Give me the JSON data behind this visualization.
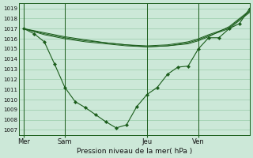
{
  "background_color": "#cce8d8",
  "plot_bg_color": "#cce8d8",
  "grid_color": "#99ccaa",
  "line_color": "#1a5c1a",
  "title": "Pression niveau de la mer( hPa )",
  "ylim": [
    1006.5,
    1019.5
  ],
  "yticks": [
    1007,
    1008,
    1009,
    1010,
    1011,
    1012,
    1013,
    1014,
    1015,
    1016,
    1017,
    1018,
    1019
  ],
  "xtick_labels": [
    "Mer",
    "Sam",
    "Jeu",
    "Ven"
  ],
  "xtick_positions": [
    0,
    16,
    48,
    68
  ],
  "xlim": [
    -2,
    88
  ],
  "series_flat": [
    {
      "x": [
        0,
        8,
        16,
        24,
        32,
        40,
        48,
        56,
        64,
        68,
        72,
        80,
        88
      ],
      "y": [
        1017.0,
        1016.6,
        1016.2,
        1015.9,
        1015.6,
        1015.4,
        1015.2,
        1015.3,
        1015.5,
        1015.8,
        1016.2,
        1017.2,
        1018.8
      ]
    },
    {
      "x": [
        0,
        8,
        16,
        24,
        32,
        40,
        48,
        56,
        64,
        68,
        72,
        80,
        88
      ],
      "y": [
        1017.0,
        1016.4,
        1016.0,
        1015.7,
        1015.5,
        1015.3,
        1015.2,
        1015.3,
        1015.6,
        1015.9,
        1016.3,
        1017.0,
        1018.6
      ]
    },
    {
      "x": [
        0,
        8,
        16,
        24,
        32,
        40,
        48,
        56,
        64,
        68,
        72,
        80,
        88
      ],
      "y": [
        1017.0,
        1016.5,
        1016.1,
        1015.8,
        1015.6,
        1015.4,
        1015.3,
        1015.4,
        1015.7,
        1016.0,
        1016.4,
        1017.1,
        1018.7
      ]
    }
  ],
  "series_main": {
    "x": [
      0,
      4,
      8,
      12,
      16,
      20,
      24,
      28,
      32,
      36,
      40,
      44,
      48,
      52,
      56,
      60,
      64,
      68,
      72,
      76,
      80,
      84,
      88
    ],
    "y": [
      1017.0,
      1016.5,
      1015.7,
      1013.5,
      1011.2,
      1009.8,
      1009.2,
      1008.5,
      1007.8,
      1007.2,
      1007.5,
      1009.3,
      1010.5,
      1011.2,
      1012.5,
      1013.2,
      1013.3,
      1015.0,
      1016.1,
      1016.1,
      1017.0,
      1017.5,
      1019.0
    ]
  },
  "vlines_x": [
    0,
    16,
    48,
    68
  ],
  "figsize": [
    3.2,
    2.0
  ],
  "dpi": 100,
  "ytick_fontsize": 5.0,
  "xtick_fontsize": 6.0,
  "xlabel_fontsize": 6.5
}
